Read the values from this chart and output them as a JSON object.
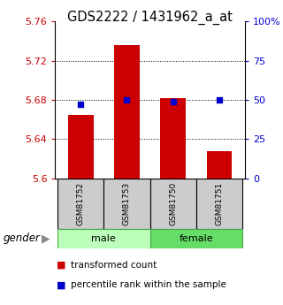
{
  "title": "GDS2222 / 1431962_a_at",
  "samples": [
    "GSM81752",
    "GSM81753",
    "GSM81750",
    "GSM81751"
  ],
  "transformed_counts": [
    5.665,
    5.736,
    5.682,
    5.628
  ],
  "percentile_ranks": [
    47,
    50,
    49,
    50
  ],
  "ylim_left": [
    5.6,
    5.76
  ],
  "ylim_right": [
    0,
    100
  ],
  "yticks_left": [
    5.6,
    5.64,
    5.68,
    5.72,
    5.76
  ],
  "yticks_right": [
    0,
    25,
    50,
    75,
    100
  ],
  "ytick_labels_left": [
    "5.6",
    "5.64",
    "5.68",
    "5.72",
    "5.76"
  ],
  "ytick_labels_right": [
    "0",
    "25",
    "50",
    "75",
    "100%"
  ],
  "bar_color": "#cc0000",
  "dot_color": "#0000cc",
  "male_color": "#bbffbb",
  "female_color": "#66dd66",
  "sample_box_color": "#cccccc",
  "left_tick_color": "#cc0000",
  "right_tick_color": "#0000cc",
  "legend_bar_label": "transformed count",
  "legend_dot_label": "percentile rank within the sample",
  "base_value": 5.6,
  "bar_width": 0.55
}
